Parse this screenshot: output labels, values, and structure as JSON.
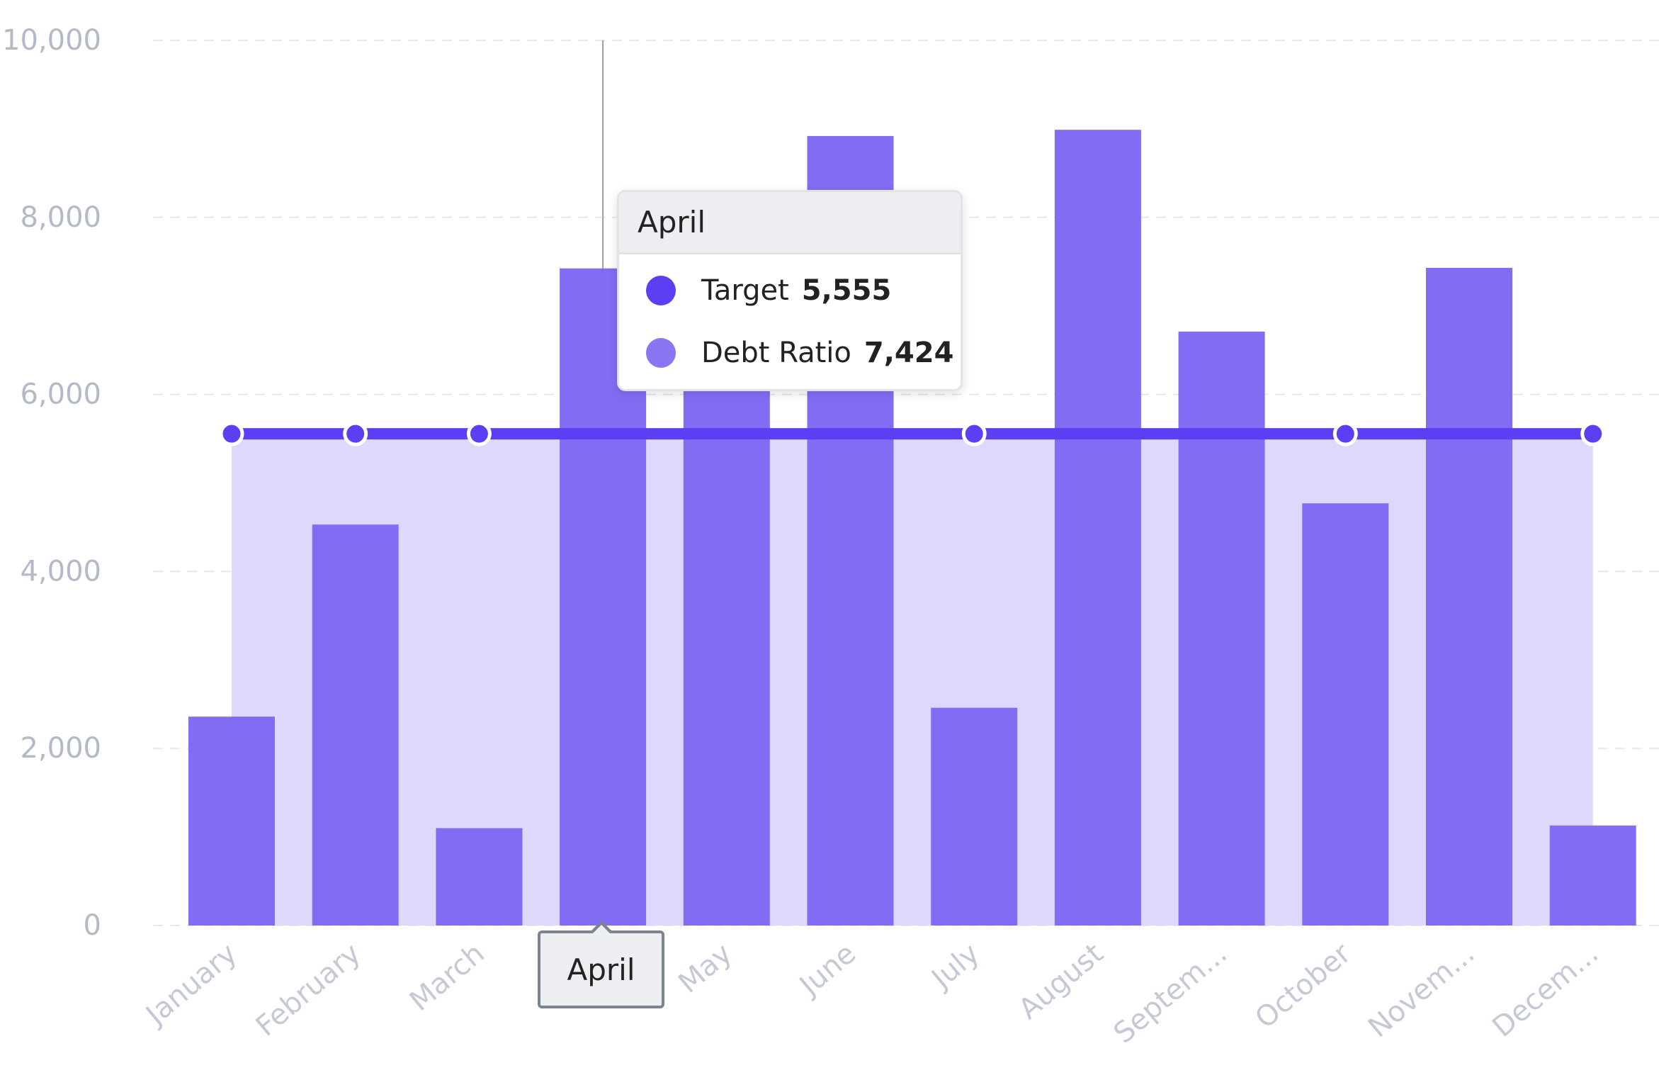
{
  "chart_data": {
    "type": "bar",
    "categories": [
      "January",
      "February",
      "March",
      "April",
      "May",
      "June",
      "July",
      "August",
      "Septem...",
      "October",
      "Novem...",
      "Decem..."
    ],
    "series": [
      {
        "name": "Target",
        "kind": "line-area",
        "color": "#5b3ff2",
        "values": [
          5555,
          5555,
          5555,
          5555,
          5555,
          5555,
          5555,
          5555,
          5555,
          5555,
          5555,
          5555
        ]
      },
      {
        "name": "Debt Ratio",
        "kind": "bar",
        "color": "#836cf4",
        "values": [
          2360,
          4530,
          1100,
          7424,
          6420,
          8920,
          2460,
          8990,
          6710,
          4770,
          7430,
          1130
        ]
      }
    ],
    "marker_indices": [
      0,
      1,
      2,
      6,
      9,
      11
    ],
    "yticks": [
      "0",
      "2,000",
      "4,000",
      "6,000",
      "8,000",
      "10,000"
    ],
    "ylim": [
      0,
      10000
    ],
    "grid": true,
    "title": "",
    "xlabel": "",
    "ylabel": "",
    "area_fill_color": "#ddd8fc",
    "tooltip": {
      "category_index": 3,
      "title": "April",
      "rows": [
        {
          "label": "Target",
          "value": "5,555",
          "color": "#5b3ff2"
        },
        {
          "label": "Debt Ratio",
          "value": "7,424",
          "color": "#8b75f5"
        }
      ]
    },
    "axis_tooltip_label": "April"
  }
}
